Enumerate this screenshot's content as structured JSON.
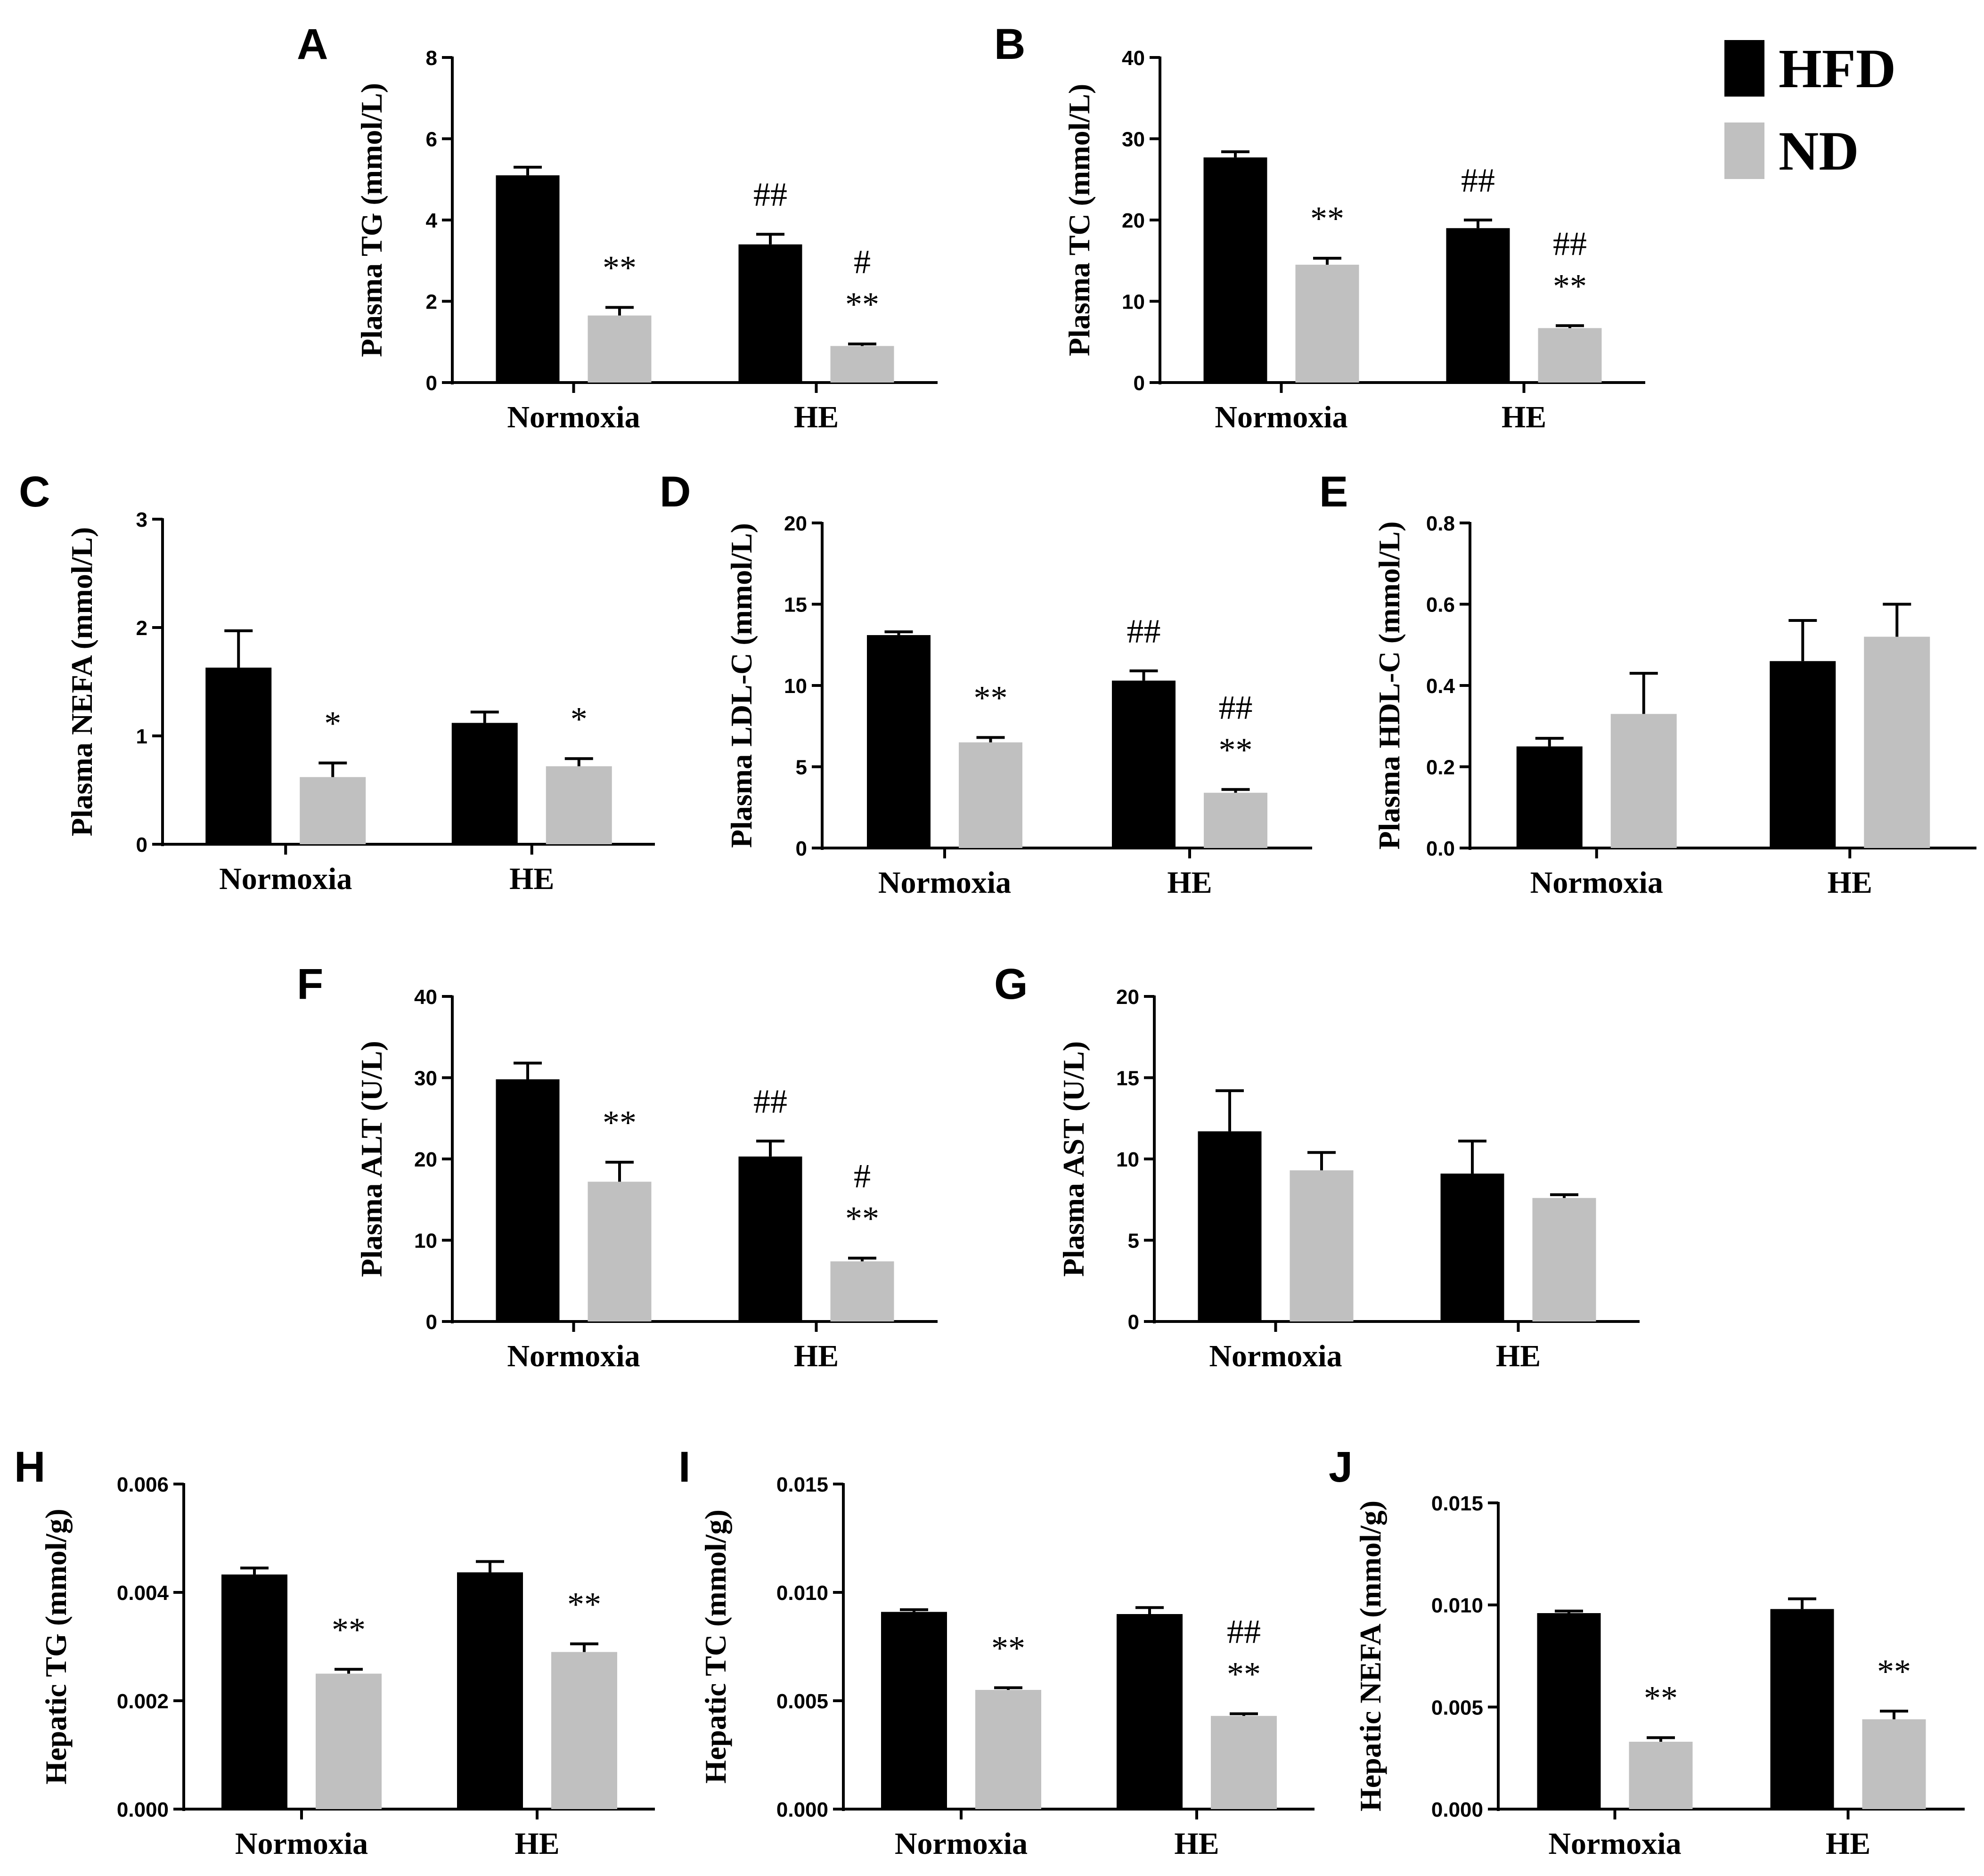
{
  "legend": {
    "items": [
      {
        "label": "HFD",
        "color": "#000000"
      },
      {
        "label": "ND",
        "color": "#c0c0c0"
      }
    ]
  },
  "chart_data": [
    {
      "panel": "A",
      "type": "bar",
      "ylabel": "Plasma TG (mmol/L)",
      "categories": [
        "Normoxia",
        "HE"
      ],
      "ylim": [
        0,
        8
      ],
      "yticks": [
        "0",
        "2",
        "4",
        "6",
        "8"
      ],
      "series": [
        {
          "name": "HFD",
          "values": [
            5.1,
            3.4
          ],
          "errors": [
            0.2,
            0.25
          ],
          "annotations": [
            "",
            "##"
          ]
        },
        {
          "name": "ND",
          "values": [
            1.65,
            0.9
          ],
          "errors": [
            0.2,
            0.05
          ],
          "annotations": [
            "**",
            "#\n**"
          ]
        }
      ]
    },
    {
      "panel": "B",
      "type": "bar",
      "ylabel": "Plasma TC (mmol/L)",
      "categories": [
        "Normoxia",
        "HE"
      ],
      "ylim": [
        0,
        40
      ],
      "yticks": [
        "0",
        "10",
        "20",
        "30",
        "40"
      ],
      "series": [
        {
          "name": "HFD",
          "values": [
            27.7,
            19.0
          ],
          "errors": [
            0.7,
            1.0
          ],
          "annotations": [
            "",
            "##"
          ]
        },
        {
          "name": "ND",
          "values": [
            14.5,
            6.7
          ],
          "errors": [
            0.8,
            0.3
          ],
          "annotations": [
            "**",
            "##\n**"
          ]
        }
      ]
    },
    {
      "panel": "C",
      "type": "bar",
      "ylabel": "Plasma NEFA (mmol/L)",
      "categories": [
        "Normoxia",
        "HE"
      ],
      "ylim": [
        0,
        3
      ],
      "yticks": [
        "0",
        "1",
        "2",
        "3"
      ],
      "series": [
        {
          "name": "HFD",
          "values": [
            1.63,
            1.12
          ],
          "errors": [
            0.34,
            0.1
          ],
          "annotations": [
            "",
            ""
          ]
        },
        {
          "name": "ND",
          "values": [
            0.62,
            0.72
          ],
          "errors": [
            0.13,
            0.07
          ],
          "annotations": [
            "*",
            "*"
          ]
        }
      ]
    },
    {
      "panel": "D",
      "type": "bar",
      "ylabel": "Plasma LDL-C (mmol/L)",
      "categories": [
        "Normoxia",
        "HE"
      ],
      "ylim": [
        0,
        20
      ],
      "yticks": [
        "0",
        "5",
        "10",
        "15",
        "20"
      ],
      "series": [
        {
          "name": "HFD",
          "values": [
            13.1,
            10.3
          ],
          "errors": [
            0.2,
            0.6
          ],
          "annotations": [
            "",
            "##"
          ]
        },
        {
          "name": "ND",
          "values": [
            6.5,
            3.4
          ],
          "errors": [
            0.3,
            0.2
          ],
          "annotations": [
            "**",
            "##\n**"
          ]
        }
      ]
    },
    {
      "panel": "E",
      "type": "bar",
      "ylabel": "Plasma HDL-C (mmol/L)",
      "categories": [
        "Normoxia",
        "HE"
      ],
      "ylim": [
        0,
        0.8
      ],
      "yticks": [
        "0.0",
        "0.2",
        "0.4",
        "0.6",
        "0.8"
      ],
      "series": [
        {
          "name": "HFD",
          "values": [
            0.25,
            0.46
          ],
          "errors": [
            0.02,
            0.1
          ],
          "annotations": [
            "",
            ""
          ]
        },
        {
          "name": "ND",
          "values": [
            0.33,
            0.52
          ],
          "errors": [
            0.1,
            0.08
          ],
          "annotations": [
            "",
            ""
          ]
        }
      ]
    },
    {
      "panel": "F",
      "type": "bar",
      "ylabel": "Plasma ALT (U/L)",
      "categories": [
        "Normoxia",
        "HE"
      ],
      "ylim": [
        0,
        40
      ],
      "yticks": [
        "0",
        "10",
        "20",
        "30",
        "40"
      ],
      "series": [
        {
          "name": "HFD",
          "values": [
            29.8,
            20.3
          ],
          "errors": [
            2.0,
            1.9
          ],
          "annotations": [
            "",
            "##"
          ]
        },
        {
          "name": "ND",
          "values": [
            17.2,
            7.4
          ],
          "errors": [
            2.4,
            0.4
          ],
          "annotations": [
            "**",
            "#\n**"
          ]
        }
      ]
    },
    {
      "panel": "G",
      "type": "bar",
      "ylabel": "Plasma AST (U/L)",
      "categories": [
        "Normoxia",
        "HE"
      ],
      "ylim": [
        0,
        20
      ],
      "yticks": [
        "0",
        "5",
        "10",
        "15",
        "20"
      ],
      "series": [
        {
          "name": "HFD",
          "values": [
            11.7,
            9.1
          ],
          "errors": [
            2.5,
            2.0
          ],
          "annotations": [
            "",
            ""
          ]
        },
        {
          "name": "ND",
          "values": [
            9.3,
            7.6
          ],
          "errors": [
            1.1,
            0.2
          ],
          "annotations": [
            "",
            ""
          ]
        }
      ]
    },
    {
      "panel": "H",
      "type": "bar",
      "ylabel": "Hepatic TG (mmol/g)",
      "categories": [
        "Normoxia",
        "HE"
      ],
      "ylim": [
        0,
        0.006
      ],
      "yticks": [
        "0.000",
        "0.002",
        "0.004",
        "0.006"
      ],
      "series": [
        {
          "name": "HFD",
          "values": [
            0.00433,
            0.00437
          ],
          "errors": [
            0.00012,
            0.0002
          ],
          "annotations": [
            "",
            ""
          ]
        },
        {
          "name": "ND",
          "values": [
            0.0025,
            0.0029
          ],
          "errors": [
            8e-05,
            0.00015
          ],
          "annotations": [
            "**",
            "**"
          ]
        }
      ]
    },
    {
      "panel": "I",
      "type": "bar",
      "ylabel": "Hepatic TC (mmol/g)",
      "categories": [
        "Normoxia",
        "HE"
      ],
      "ylim": [
        0,
        0.015
      ],
      "yticks": [
        "0.000",
        "0.005",
        "0.010",
        "0.015"
      ],
      "series": [
        {
          "name": "HFD",
          "values": [
            0.0091,
            0.009
          ],
          "errors": [
            0.0001,
            0.0003
          ],
          "annotations": [
            "",
            ""
          ]
        },
        {
          "name": "ND",
          "values": [
            0.0055,
            0.0043
          ],
          "errors": [
            0.0001,
            0.0001
          ],
          "annotations": [
            "**",
            "##\n**"
          ]
        }
      ]
    },
    {
      "panel": "J",
      "type": "bar",
      "ylabel": "Hepatic NEFA (mmol/g)",
      "categories": [
        "Normoxia",
        "HE"
      ],
      "ylim": [
        0,
        0.015
      ],
      "yticks": [
        "0.000",
        "0.005",
        "0.010",
        "0.015"
      ],
      "series": [
        {
          "name": "HFD",
          "values": [
            0.0096,
            0.0098
          ],
          "errors": [
            0.0001,
            0.0005
          ],
          "annotations": [
            "",
            ""
          ]
        },
        {
          "name": "ND",
          "values": [
            0.0033,
            0.0044
          ],
          "errors": [
            0.0002,
            0.0004
          ],
          "annotations": [
            "**",
            "**"
          ]
        }
      ]
    }
  ]
}
